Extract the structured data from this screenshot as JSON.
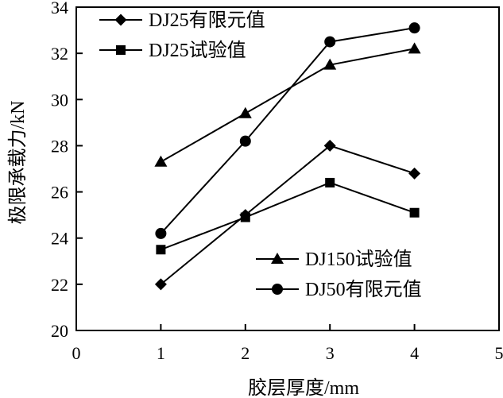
{
  "chart_data": {
    "type": "line",
    "xlabel": "胶层厚度/mm",
    "ylabel": "极限承载力/kN",
    "xlim": [
      0,
      5
    ],
    "ylim": [
      20,
      34
    ],
    "xticks": [
      "0",
      "1",
      "2",
      "3",
      "4",
      "5"
    ],
    "yticks": [
      "20",
      "22",
      "24",
      "26",
      "28",
      "30",
      "32",
      "34"
    ],
    "grid": false,
    "x": [
      1,
      2,
      3,
      4
    ],
    "series": [
      {
        "name": "DJ25有限元值",
        "marker": "diamond",
        "values": [
          22.0,
          25.0,
          28.0,
          26.8
        ]
      },
      {
        "name": "DJ25试验值",
        "marker": "square",
        "values": [
          23.5,
          24.9,
          26.4,
          25.1
        ]
      },
      {
        "name": "DJ150试验值",
        "marker": "triangle",
        "values": [
          27.3,
          29.4,
          31.5,
          32.2
        ]
      },
      {
        "name": "DJ50有限元值",
        "marker": "circle",
        "values": [
          24.2,
          28.2,
          32.5,
          33.1
        ]
      }
    ],
    "legends": [
      {
        "position": "top-left",
        "entries": [
          0,
          1
        ]
      },
      {
        "position": "lower-right",
        "entries": [
          2,
          3
        ]
      }
    ],
    "colors": {
      "line": "#000000",
      "marker": "#000000"
    }
  }
}
